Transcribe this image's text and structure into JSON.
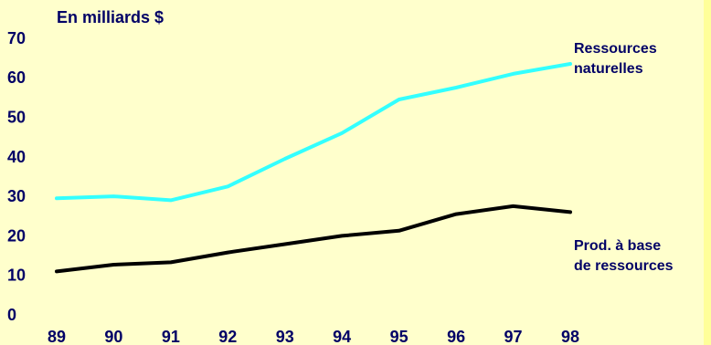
{
  "chart_data": {
    "type": "line",
    "title": "",
    "ylabel": "En milliards $",
    "xlabel": "",
    "categories": [
      "89",
      "90",
      "91",
      "92",
      "93",
      "94",
      "95",
      "96",
      "97",
      "98"
    ],
    "yticks": [
      "0",
      "10",
      "20",
      "30",
      "40",
      "50",
      "60",
      "70"
    ],
    "ylim": [
      0,
      70
    ],
    "grid": false,
    "legend": "inline labels at line ends",
    "series": [
      {
        "name": "Ressources naturelles",
        "label_lines": [
          "Ressources",
          "naturelles"
        ],
        "color": "#33ffff",
        "values": [
          29.5,
          30,
          29,
          32.5,
          39.5,
          46,
          54.5,
          57.5,
          61,
          63.5
        ]
      },
      {
        "name": "Prod. à base de ressources",
        "label_lines": [
          "Prod. à base",
          "de ressources"
        ],
        "color": "#000000",
        "values": [
          11,
          12.7,
          13.3,
          15.8,
          17.9,
          20,
          21.3,
          25.5,
          27.5,
          26
        ]
      }
    ]
  },
  "colors": {
    "background": "#00cc66",
    "panel": "#ffffcc",
    "edge_strip": "#ffff99",
    "text": "#000066"
  }
}
